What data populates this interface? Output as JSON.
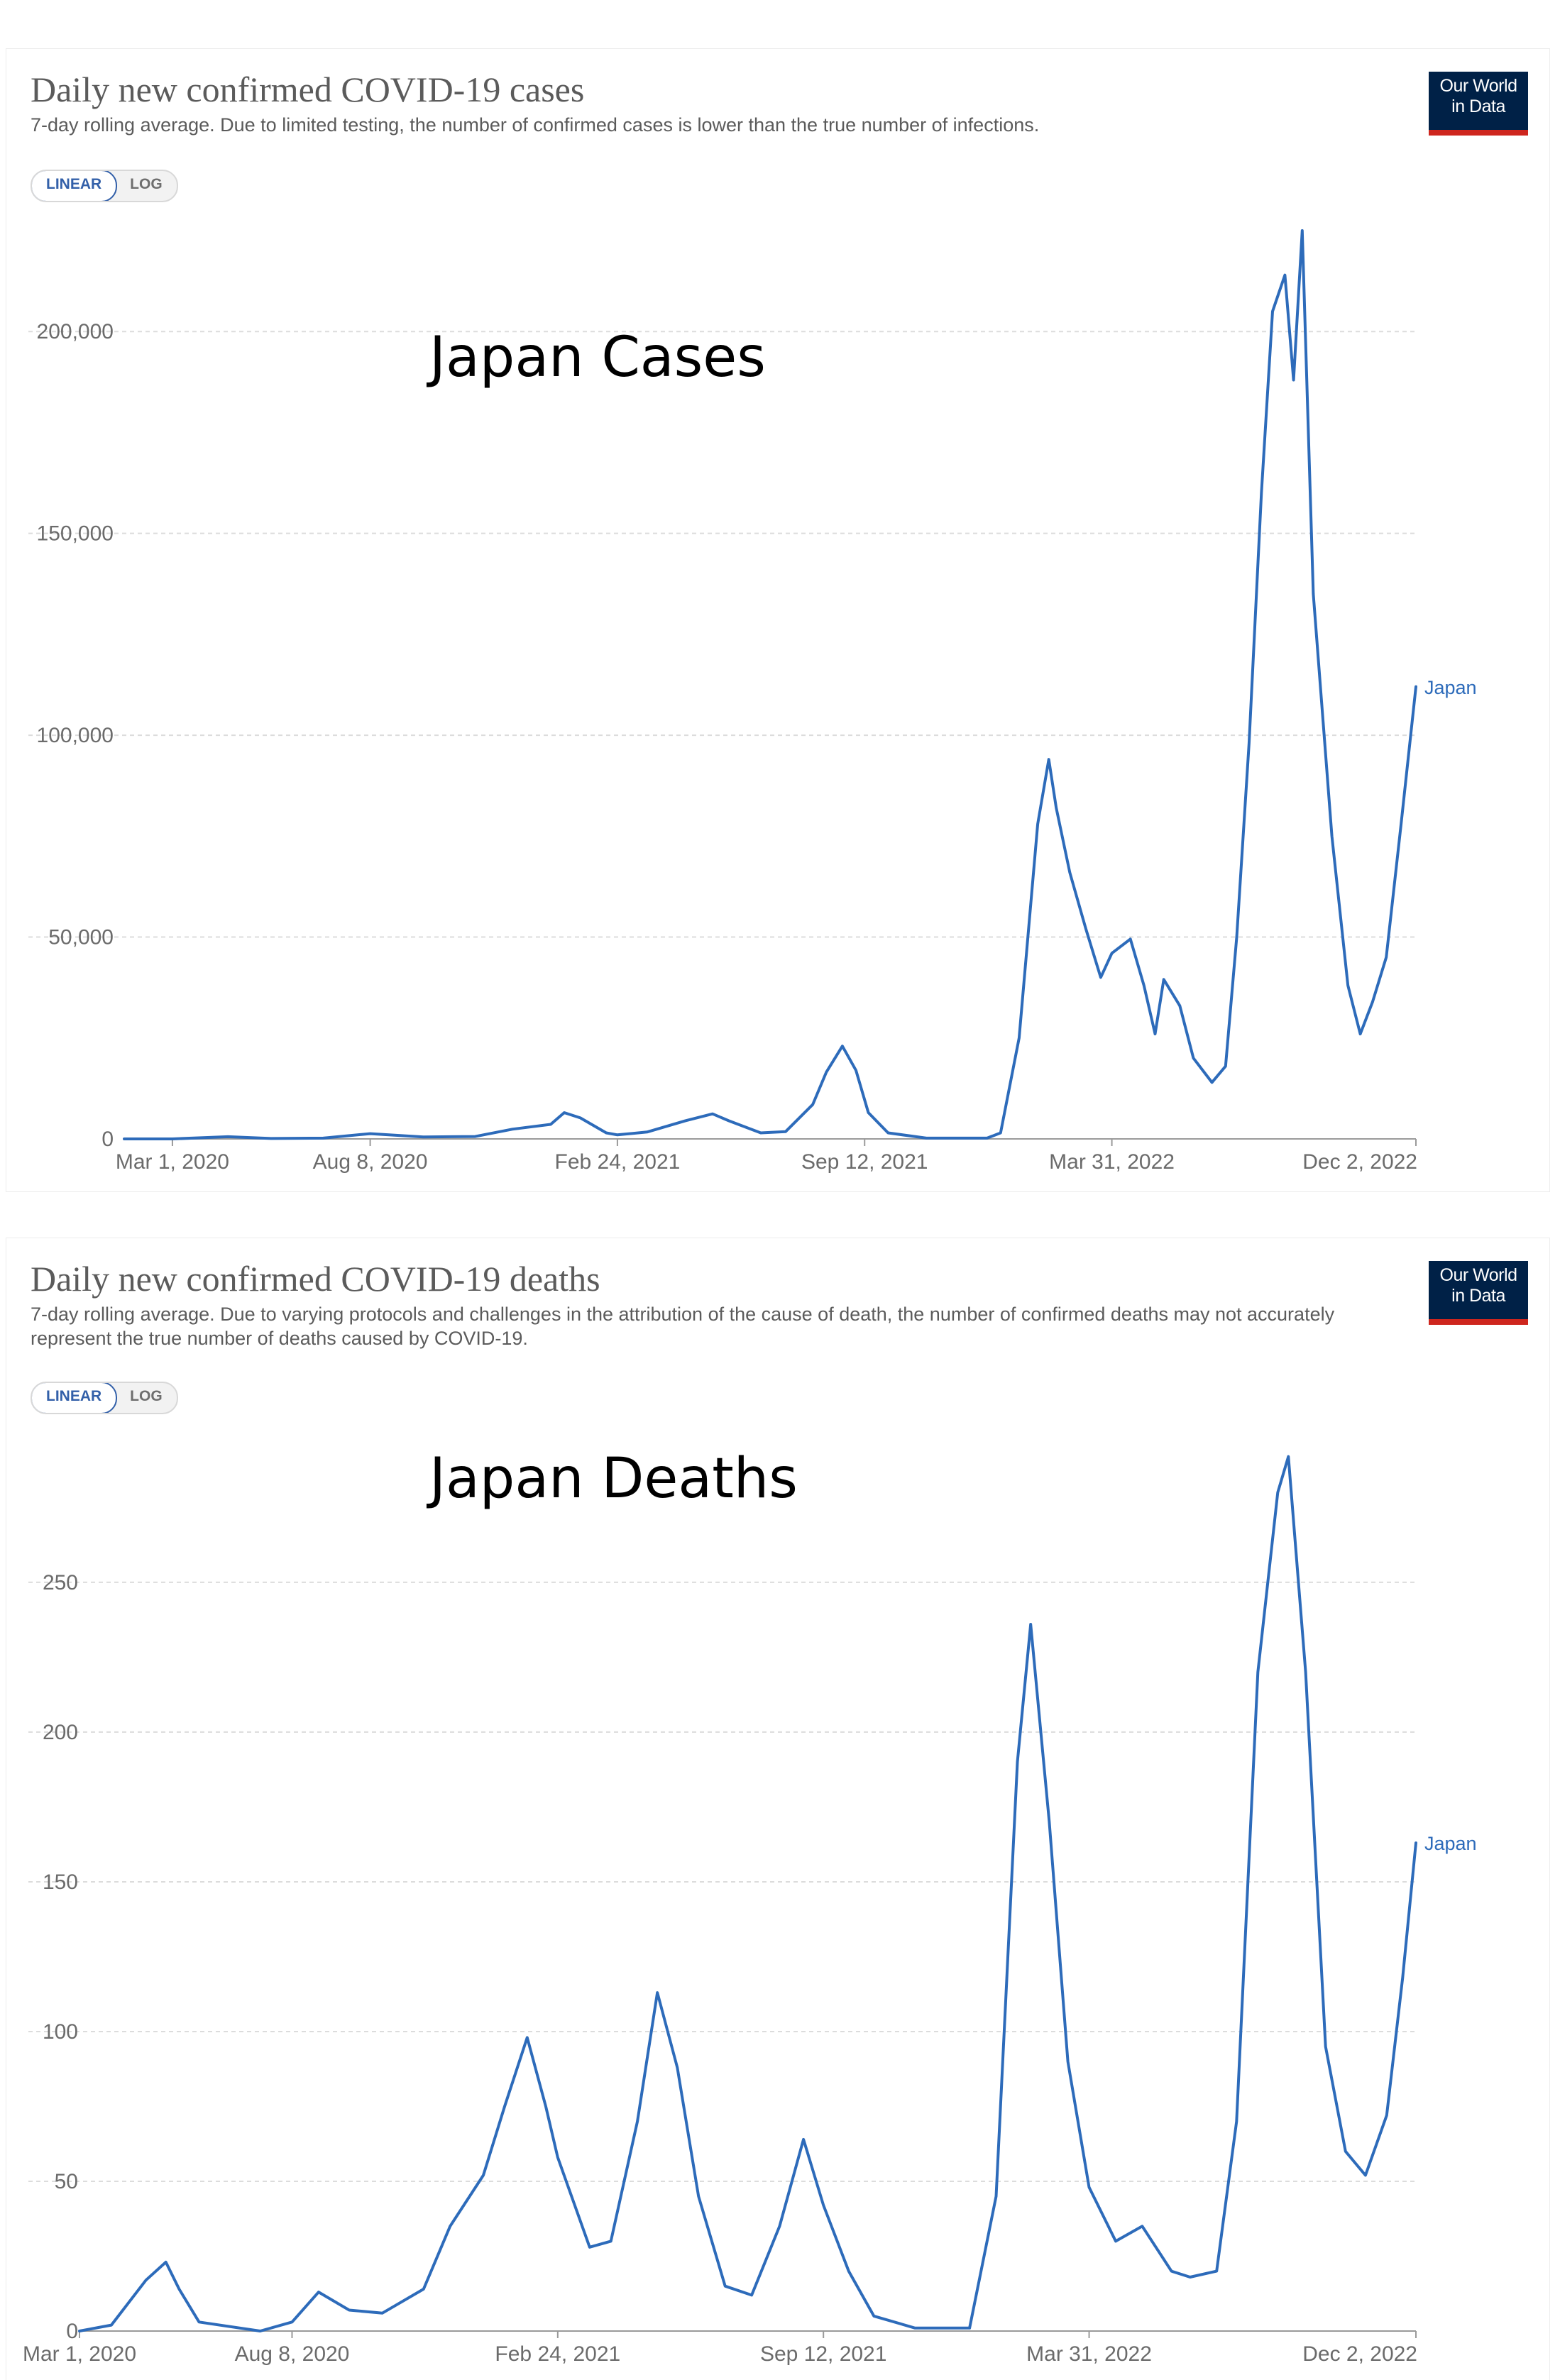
{
  "brand": {
    "logo_line1": "Our World",
    "logo_line2": "in Data",
    "accent": "#ce261e",
    "navy": "#002147",
    "line_color": "#2d6bba"
  },
  "charts": [
    {
      "title": "Daily new confirmed COVID-19 cases",
      "subtitle": "7-day rolling average. Due to limited testing, the number of confirmed cases is lower than the true number of infections.",
      "toggle": {
        "linear": "LINEAR",
        "log": "LOG",
        "selected": "LINEAR"
      },
      "annotation": "Japan Cases",
      "end_label": "Japan"
    },
    {
      "title": "Daily new confirmed COVID-19 deaths",
      "subtitle": "7-day rolling average. Due to varying protocols and challenges in the attribution of the cause of death, the number of confirmed deaths may not accurately represent the true number of deaths caused by COVID-19.",
      "toggle": {
        "linear": "LINEAR",
        "log": "LOG",
        "selected": "LINEAR"
      },
      "annotation": "Japan Deaths",
      "end_label": "Japan"
    }
  ],
  "chart_data": [
    {
      "type": "line",
      "title": "Daily new confirmed COVID-19 cases",
      "xlabel": "",
      "ylabel": "",
      "xlim": [
        "2020-01-22",
        "2022-12-02"
      ],
      "ylim": [
        0,
        225000
      ],
      "x_ticks": [
        "Mar 1, 2020",
        "Aug 8, 2020",
        "Feb 24, 2021",
        "Sep 12, 2021",
        "Mar 31, 2022",
        "Dec 2, 2022"
      ],
      "y_ticks": [
        0,
        50000,
        100000,
        150000,
        200000
      ],
      "y_tick_labels": [
        "0",
        "50,000",
        "100,000",
        "150,000",
        "200,000"
      ],
      "grid": true,
      "series": [
        {
          "name": "Japan",
          "points": [
            [
              "2020-01-22",
              0
            ],
            [
              "2020-03-01",
              0
            ],
            [
              "2020-04-15",
              550
            ],
            [
              "2020-05-20",
              100
            ],
            [
              "2020-07-01",
              200
            ],
            [
              "2020-08-08",
              1300
            ],
            [
              "2020-09-20",
              500
            ],
            [
              "2020-11-01",
              600
            ],
            [
              "2020-12-01",
              2400
            ],
            [
              "2021-01-01",
              3600
            ],
            [
              "2021-01-12",
              6500
            ],
            [
              "2021-01-25",
              5200
            ],
            [
              "2021-02-15",
              1500
            ],
            [
              "2021-02-24",
              1000
            ],
            [
              "2021-03-20",
              1700
            ],
            [
              "2021-04-20",
              4500
            ],
            [
              "2021-05-12",
              6200
            ],
            [
              "2021-05-25",
              4500
            ],
            [
              "2021-06-20",
              1500
            ],
            [
              "2021-07-10",
              1800
            ],
            [
              "2021-08-01",
              8500
            ],
            [
              "2021-08-12",
              16500
            ],
            [
              "2021-08-25",
              23000
            ],
            [
              "2021-09-05",
              17000
            ],
            [
              "2021-09-15",
              6500
            ],
            [
              "2021-10-01",
              1500
            ],
            [
              "2021-11-01",
              200
            ],
            [
              "2021-12-20",
              200
            ],
            [
              "2021-12-31",
              1500
            ],
            [
              "2022-01-15",
              25000
            ],
            [
              "2022-01-30",
              78000
            ],
            [
              "2022-02-08",
              94000
            ],
            [
              "2022-02-14",
              82000
            ],
            [
              "2022-02-25",
              66000
            ],
            [
              "2022-03-10",
              52000
            ],
            [
              "2022-03-22",
              40000
            ],
            [
              "2022-03-31",
              46000
            ],
            [
              "2022-04-15",
              49500
            ],
            [
              "2022-04-26",
              38000
            ],
            [
              "2022-05-05",
              26000
            ],
            [
              "2022-05-12",
              39500
            ],
            [
              "2022-05-25",
              33000
            ],
            [
              "2022-06-05",
              20000
            ],
            [
              "2022-06-20",
              14000
            ],
            [
              "2022-07-01",
              18000
            ],
            [
              "2022-07-10",
              50000
            ],
            [
              "2022-07-20",
              98000
            ],
            [
              "2022-07-30",
              160000
            ],
            [
              "2022-08-08",
              205000
            ],
            [
              "2022-08-18",
              214000
            ],
            [
              "2022-08-25",
              188000
            ],
            [
              "2022-09-01",
              225000
            ],
            [
              "2022-09-10",
              135000
            ],
            [
              "2022-09-25",
              75000
            ],
            [
              "2022-10-08",
              38000
            ],
            [
              "2022-10-18",
              26000
            ],
            [
              "2022-10-28",
              34000
            ],
            [
              "2022-11-08",
              45000
            ],
            [
              "2022-11-20",
              78000
            ],
            [
              "2022-12-02",
              112000
            ]
          ]
        }
      ]
    },
    {
      "type": "line",
      "title": "Daily new confirmed COVID-19 deaths",
      "xlabel": "",
      "ylabel": "",
      "xlim": [
        "2020-03-01",
        "2022-12-02"
      ],
      "ylim": [
        0,
        295
      ],
      "x_ticks": [
        "Mar 1, 2020",
        "Aug 8, 2020",
        "Feb 24, 2021",
        "Sep 12, 2021",
        "Mar 31, 2022",
        "Dec 2, 2022"
      ],
      "y_ticks": [
        0,
        50,
        100,
        150,
        200,
        250
      ],
      "y_tick_labels": [
        "0",
        "50",
        "100",
        "150",
        "200",
        "250"
      ],
      "grid": true,
      "series": [
        {
          "name": "Japan",
          "points": [
            [
              "2020-03-01",
              0
            ],
            [
              "2020-03-25",
              2
            ],
            [
              "2020-04-20",
              17
            ],
            [
              "2020-05-05",
              23
            ],
            [
              "2020-05-15",
              14
            ],
            [
              "2020-05-30",
              3
            ],
            [
              "2020-07-15",
              0
            ],
            [
              "2020-08-08",
              3
            ],
            [
              "2020-08-28",
              13
            ],
            [
              "2020-09-20",
              7
            ],
            [
              "2020-10-15",
              6
            ],
            [
              "2020-11-15",
              14
            ],
            [
              "2020-12-05",
              35
            ],
            [
              "2020-12-30",
              52
            ],
            [
              "2021-01-15",
              75
            ],
            [
              "2021-02-01",
              98
            ],
            [
              "2021-02-15",
              75
            ],
            [
              "2021-02-24",
              58
            ],
            [
              "2021-03-20",
              28
            ],
            [
              "2021-04-05",
              30
            ],
            [
              "2021-04-25",
              70
            ],
            [
              "2021-05-10",
              113
            ],
            [
              "2021-05-25",
              88
            ],
            [
              "2021-06-10",
              45
            ],
            [
              "2021-06-30",
              15
            ],
            [
              "2021-07-20",
              12
            ],
            [
              "2021-08-10",
              35
            ],
            [
              "2021-08-28",
              64
            ],
            [
              "2021-09-12",
              42
            ],
            [
              "2021-10-01",
              20
            ],
            [
              "2021-10-20",
              5
            ],
            [
              "2021-11-20",
              1
            ],
            [
              "2021-12-31",
              1
            ],
            [
              "2022-01-20",
              45
            ],
            [
              "2022-02-05",
              190
            ],
            [
              "2022-02-15",
              236
            ],
            [
              "2022-03-01",
              170
            ],
            [
              "2022-03-15",
              90
            ],
            [
              "2022-03-31",
              48
            ],
            [
              "2022-04-20",
              30
            ],
            [
              "2022-05-10",
              35
            ],
            [
              "2022-06-01",
              20
            ],
            [
              "2022-06-15",
              18
            ],
            [
              "2022-07-05",
              20
            ],
            [
              "2022-07-20",
              70
            ],
            [
              "2022-08-05",
              220
            ],
            [
              "2022-08-20",
              280
            ],
            [
              "2022-08-28",
              292
            ],
            [
              "2022-09-10",
              220
            ],
            [
              "2022-09-25",
              95
            ],
            [
              "2022-10-10",
              60
            ],
            [
              "2022-10-25",
              52
            ],
            [
              "2022-11-10",
              72
            ],
            [
              "2022-11-22",
              118
            ],
            [
              "2022-12-02",
              163
            ]
          ]
        }
      ]
    }
  ]
}
